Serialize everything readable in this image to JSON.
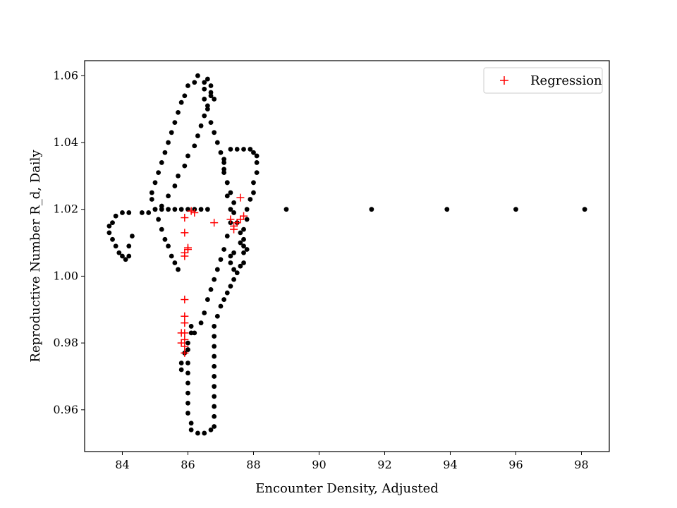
{
  "chart_data": {
    "type": "scatter",
    "title": "",
    "xlabel": "Encounter Density, Adjusted",
    "ylabel": "Reproductive Number R_d, Daily",
    "xlim": [
      82.85,
      98.85
    ],
    "ylim": [
      0.9475,
      1.0645
    ],
    "xticks": [
      84,
      86,
      88,
      90,
      92,
      94,
      96,
      98
    ],
    "yticks": [
      0.96,
      0.98,
      1.0,
      1.02,
      1.04,
      1.06
    ],
    "ytick_labels": [
      "0.96",
      "0.98",
      "1.00",
      "1.02",
      "1.04",
      "1.06"
    ],
    "grid": false,
    "legend": {
      "placement": "top-right",
      "entries": [
        "Regression"
      ]
    },
    "colors": {
      "observed": "#000000",
      "regression": "#ff0000"
    },
    "series": [
      {
        "marker": "dot",
        "color": "#000000",
        "points": [
          [
            86.8,
            1.053
          ],
          [
            86.7,
            1.055
          ],
          [
            86.5,
            1.058
          ],
          [
            86.5,
            1.056
          ],
          [
            86.5,
            1.053
          ],
          [
            86.6,
            1.05
          ],
          [
            86.7,
            1.046
          ],
          [
            86.8,
            1.043
          ],
          [
            86.9,
            1.04
          ],
          [
            87.0,
            1.037
          ],
          [
            87.1,
            1.034
          ],
          [
            87.1,
            1.031
          ],
          [
            87.2,
            1.028
          ],
          [
            87.3,
            1.025
          ],
          [
            87.4,
            1.022
          ],
          [
            87.4,
            1.019
          ],
          [
            87.5,
            1.016
          ],
          [
            87.6,
            1.013
          ],
          [
            87.6,
            1.01
          ],
          [
            87.7,
            1.007
          ],
          [
            87.7,
            1.004
          ],
          [
            87.6,
            1.003
          ],
          [
            87.5,
            1.001
          ],
          [
            87.4,
            0.999
          ],
          [
            87.3,
            0.997
          ],
          [
            87.2,
            0.995
          ],
          [
            87.1,
            0.993
          ],
          [
            87.0,
            0.991
          ],
          [
            86.9,
            0.988
          ],
          [
            86.8,
            0.985
          ],
          [
            86.8,
            0.982
          ],
          [
            86.8,
            0.979
          ],
          [
            86.8,
            0.976
          ],
          [
            86.8,
            0.973
          ],
          [
            86.8,
            0.97
          ],
          [
            86.8,
            0.967
          ],
          [
            86.8,
            0.964
          ],
          [
            86.8,
            0.961
          ],
          [
            86.8,
            0.958
          ],
          [
            86.8,
            0.955
          ],
          [
            86.7,
            0.954
          ],
          [
            86.5,
            0.953
          ],
          [
            86.3,
            0.953
          ],
          [
            86.1,
            0.954
          ],
          [
            86.1,
            0.956
          ],
          [
            86.0,
            0.959
          ],
          [
            86.0,
            0.962
          ],
          [
            86.0,
            0.965
          ],
          [
            86.0,
            0.968
          ],
          [
            86.0,
            0.971
          ],
          [
            86.0,
            0.974
          ],
          [
            85.9,
            0.977
          ],
          [
            85.8,
            0.974
          ],
          [
            85.8,
            0.972
          ],
          [
            86.0,
            0.978
          ],
          [
            86.0,
            0.98
          ],
          [
            86.1,
            0.983
          ],
          [
            86.1,
            0.985
          ],
          [
            86.2,
            0.983
          ],
          [
            86.4,
            0.986
          ],
          [
            86.5,
            0.989
          ],
          [
            86.6,
            0.993
          ],
          [
            86.7,
            0.996
          ],
          [
            86.8,
            0.999
          ],
          [
            86.9,
            1.002
          ],
          [
            87.0,
            1.005
          ],
          [
            87.1,
            1.008
          ],
          [
            87.2,
            1.012
          ],
          [
            87.3,
            1.016
          ],
          [
            87.3,
            1.02
          ],
          [
            87.2,
            1.024
          ],
          [
            87.2,
            1.028
          ],
          [
            87.1,
            1.032
          ],
          [
            87.1,
            1.035
          ],
          [
            87.3,
            1.038
          ],
          [
            87.5,
            1.038
          ],
          [
            87.7,
            1.038
          ],
          [
            87.9,
            1.038
          ],
          [
            88.0,
            1.037
          ],
          [
            88.1,
            1.036
          ],
          [
            88.1,
            1.034
          ],
          [
            88.1,
            1.031
          ],
          [
            88.0,
            1.028
          ],
          [
            88.0,
            1.025
          ],
          [
            87.9,
            1.023
          ],
          [
            87.8,
            1.02
          ],
          [
            87.8,
            1.017
          ],
          [
            87.7,
            1.014
          ],
          [
            87.7,
            1.011
          ],
          [
            87.7,
            1.009
          ],
          [
            87.8,
            1.008
          ],
          [
            87.4,
            1.007
          ],
          [
            87.3,
            1.006
          ],
          [
            87.3,
            1.004
          ],
          [
            87.4,
            1.002
          ],
          [
            86.6,
            1.02
          ],
          [
            86.4,
            1.02
          ],
          [
            86.2,
            1.02
          ],
          [
            86.0,
            1.02
          ],
          [
            85.8,
            1.02
          ],
          [
            85.6,
            1.02
          ],
          [
            85.4,
            1.02
          ],
          [
            85.2,
            1.02
          ],
          [
            85.0,
            1.02
          ],
          [
            84.8,
            1.019
          ],
          [
            84.6,
            1.019
          ],
          [
            85.2,
            1.021
          ],
          [
            85.4,
            1.024
          ],
          [
            85.6,
            1.027
          ],
          [
            85.7,
            1.03
          ],
          [
            85.9,
            1.033
          ],
          [
            86.0,
            1.036
          ],
          [
            86.2,
            1.039
          ],
          [
            86.3,
            1.042
          ],
          [
            86.4,
            1.045
          ],
          [
            86.5,
            1.048
          ],
          [
            86.6,
            1.051
          ],
          [
            86.7,
            1.054
          ],
          [
            86.7,
            1.057
          ],
          [
            86.6,
            1.059
          ],
          [
            86.3,
            1.06
          ],
          [
            86.2,
            1.058
          ],
          [
            86.0,
            1.057
          ],
          [
            85.9,
            1.054
          ],
          [
            85.8,
            1.052
          ],
          [
            85.7,
            1.049
          ],
          [
            85.6,
            1.046
          ],
          [
            85.5,
            1.043
          ],
          [
            85.4,
            1.04
          ],
          [
            85.3,
            1.037
          ],
          [
            85.2,
            1.034
          ],
          [
            85.1,
            1.031
          ],
          [
            85.0,
            1.028
          ],
          [
            84.9,
            1.025
          ],
          [
            84.9,
            1.023
          ],
          [
            85.0,
            1.02
          ],
          [
            85.1,
            1.017
          ],
          [
            85.2,
            1.014
          ],
          [
            85.3,
            1.011
          ],
          [
            85.4,
            1.009
          ],
          [
            85.5,
            1.006
          ],
          [
            85.6,
            1.004
          ],
          [
            85.7,
            1.002
          ],
          [
            84.3,
            1.012
          ],
          [
            84.2,
            1.009
          ],
          [
            84.2,
            1.006
          ],
          [
            84.1,
            1.005
          ],
          [
            84.0,
            1.006
          ],
          [
            83.9,
            1.007
          ],
          [
            83.8,
            1.009
          ],
          [
            83.7,
            1.011
          ],
          [
            83.6,
            1.013
          ],
          [
            83.6,
            1.015
          ],
          [
            83.7,
            1.016
          ],
          [
            83.8,
            1.018
          ],
          [
            84.0,
            1.019
          ],
          [
            84.2,
            1.019
          ],
          [
            89.0,
            1.02
          ],
          [
            91.6,
            1.02
          ],
          [
            93.9,
            1.02
          ],
          [
            96.0,
            1.02
          ],
          [
            98.1,
            1.02
          ]
        ]
      },
      {
        "name": "Regression",
        "marker": "plus",
        "color": "#ff0000",
        "points": [
          [
            85.9,
            1.0175
          ],
          [
            85.9,
            1.013
          ],
          [
            86.0,
            1.008
          ],
          [
            85.9,
            1.007
          ],
          [
            85.9,
            1.006
          ],
          [
            85.9,
            0.993
          ],
          [
            85.9,
            0.988
          ],
          [
            85.9,
            0.986
          ],
          [
            85.9,
            0.983
          ],
          [
            85.9,
            0.981
          ],
          [
            85.9,
            0.979
          ],
          [
            85.9,
            0.977
          ],
          [
            85.8,
            0.983
          ],
          [
            85.8,
            0.98
          ],
          [
            86.1,
            1.0195
          ],
          [
            86.2,
            1.019
          ],
          [
            86.8,
            1.016
          ],
          [
            87.3,
            1.017
          ],
          [
            87.4,
            1.015
          ],
          [
            87.4,
            1.014
          ],
          [
            87.5,
            1.016
          ],
          [
            87.6,
            1.017
          ],
          [
            87.6,
            1.0235
          ],
          [
            87.7,
            1.018
          ],
          [
            86.0,
            1.0085
          ]
        ]
      }
    ]
  }
}
